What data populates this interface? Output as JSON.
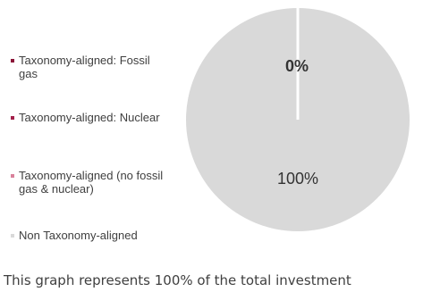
{
  "chart_data": {
    "type": "pie",
    "categories": [
      "Taxonomy-aligned: Fossil gas",
      "Taxonomy-aligned: Nuclear",
      "Taxonomy-aligned (no fossil gas & nuclear)",
      "Non Taxonomy-aligned"
    ],
    "values": [
      0,
      0,
      0,
      100
    ],
    "colors": [
      "#8B1538",
      "#A3204A",
      "#D9829B",
      "#D9D9D9"
    ],
    "data_labels": [
      {
        "text": "0%",
        "value": 0
      },
      {
        "text": "100%",
        "value": 100
      }
    ],
    "legend_position": "left"
  },
  "legend": {
    "items": [
      {
        "label": "Taxonomy-aligned: Fossil gas",
        "color": "#8B1538"
      },
      {
        "label": "Taxonomy-aligned: Nuclear",
        "color": "#A3204A"
      },
      {
        "label": "Taxonomy-aligned (no fossil gas & nuclear)",
        "color": "#D9829B"
      },
      {
        "label": "Non Taxonomy-aligned",
        "color": "#D9D9D9"
      }
    ]
  },
  "footnote": "This graph represents 100% of the total investment"
}
